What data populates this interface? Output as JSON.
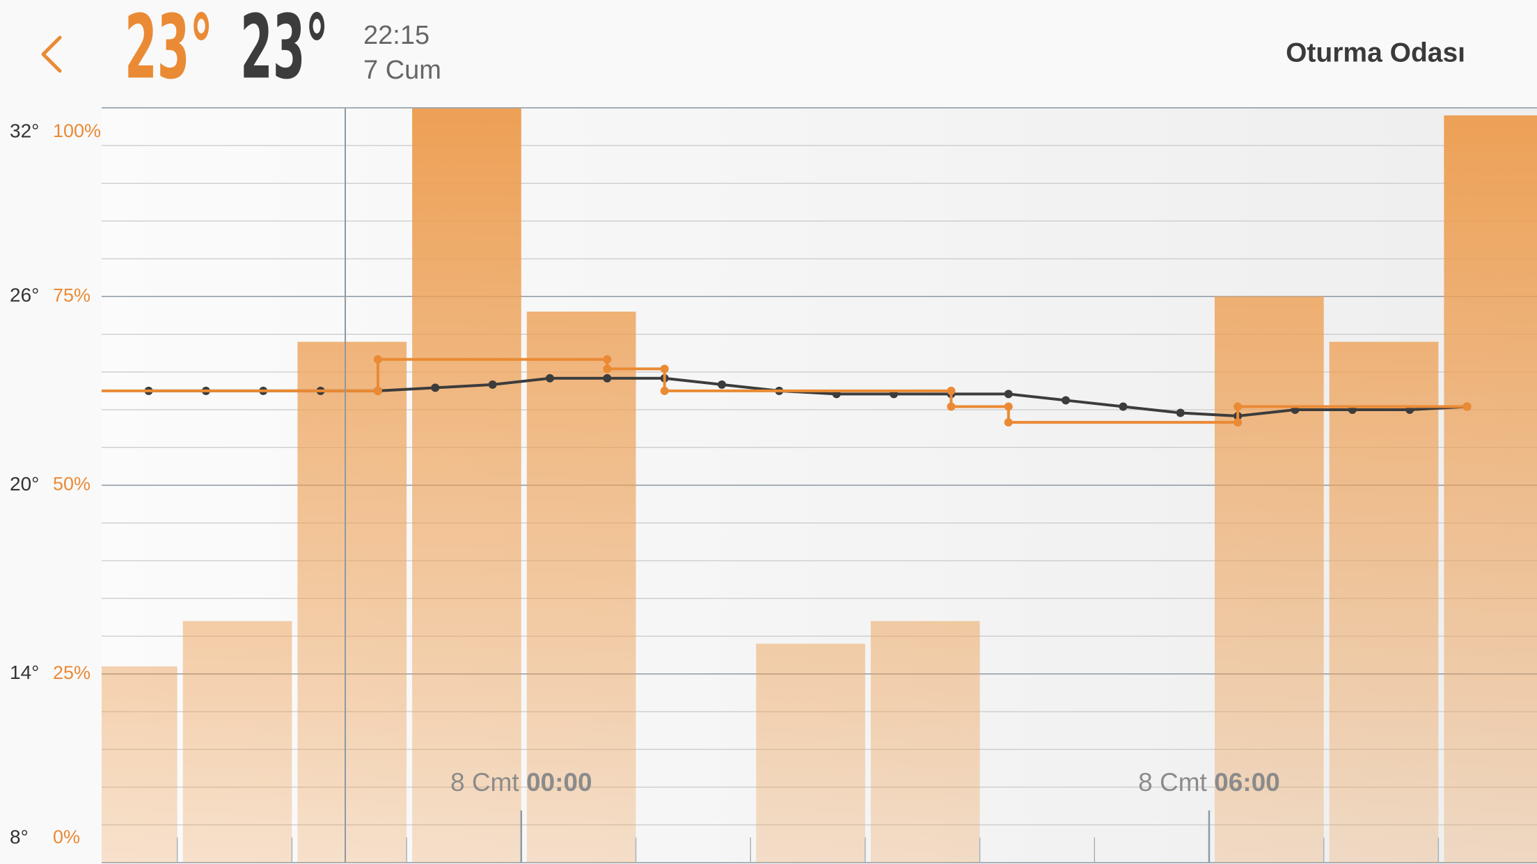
{
  "header": {
    "current_temp": "23°",
    "target_temp": "23°",
    "time": "22:15",
    "date": "7 Cum",
    "room": "Oturma Odası"
  },
  "chart_data": {
    "type": "combo",
    "xlim": [
      -3.66,
      8.86
    ],
    "xticks": [
      {
        "value": 0,
        "label": "8 Cmt 00:00"
      },
      {
        "value": 6,
        "label": "8 Cmt 06:00"
      }
    ],
    "ylim": [
      8,
      32
    ],
    "yticks": [
      {
        "value": 8,
        "label": "8°"
      },
      {
        "value": 14,
        "label": "14°"
      },
      {
        "value": 20,
        "label": "20°"
      },
      {
        "value": 26,
        "label": "26°"
      },
      {
        "value": 32,
        "label": "32°"
      }
    ],
    "y2lim": [
      0,
      100
    ],
    "y2ticks": [
      {
        "value": 0,
        "label": "0%"
      },
      {
        "value": 25,
        "label": "25%"
      },
      {
        "value": 50,
        "label": "50%"
      },
      {
        "value": 75,
        "label": "75%"
      },
      {
        "value": 100,
        "label": "100%"
      }
    ],
    "grid": true,
    "series": [
      {
        "type": "bar",
        "axis": "y2",
        "color": "#eda055",
        "x": [
          -4,
          -3,
          -2,
          -1,
          0,
          1,
          2,
          3,
          4,
          5,
          6,
          7,
          8
        ],
        "values": [
          26,
          32,
          69,
          100,
          73,
          0,
          29,
          32,
          0,
          0,
          75,
          69,
          99
        ]
      },
      {
        "type": "line",
        "color": "#3c3c3c",
        "x": [
          -3.25,
          -2.75,
          -2.25,
          -1.75,
          -1.25,
          -0.75,
          -0.25,
          0.25,
          0.75,
          1.25,
          1.75,
          2.25,
          2.75,
          3.25,
          3.75,
          4.25,
          4.75,
          5.25,
          5.75,
          6.25,
          6.75,
          7.25,
          7.75,
          8.25
        ],
        "values": [
          23.0,
          23.0,
          23.0,
          23.0,
          23.0,
          23.1,
          23.2,
          23.4,
          23.4,
          23.4,
          23.2,
          23.0,
          22.9,
          22.9,
          22.9,
          22.9,
          22.7,
          22.5,
          22.3,
          22.2,
          22.4,
          22.4,
          22.4,
          22.5
        ]
      },
      {
        "type": "step",
        "color": "#ea8a35",
        "x": [
          -4,
          -1.25,
          0.75,
          1.25,
          3.75,
          4.25,
          6.25,
          8.25
        ],
        "values": [
          23.0,
          24.0,
          23.7,
          23.0,
          22.5,
          22.0,
          22.5,
          22.5
        ]
      }
    ]
  }
}
